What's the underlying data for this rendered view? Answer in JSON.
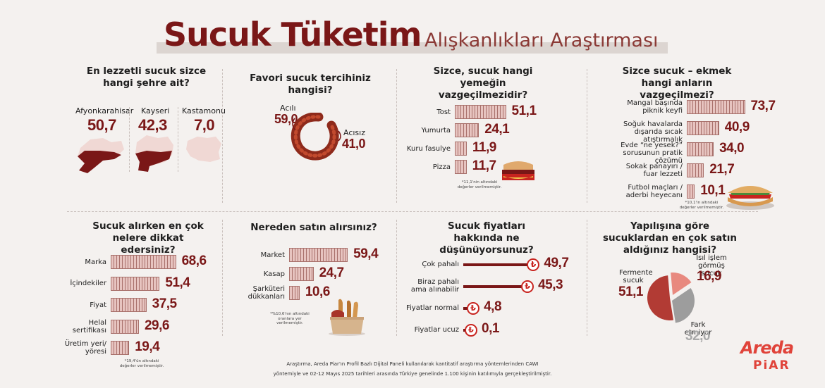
{
  "header": {
    "title_bold": "Sucuk Tüketim",
    "title_light": "Alışkanlıkları Araştırması"
  },
  "colors": {
    "accent": "#7a1717",
    "red": "#c8241f",
    "bar_fill": "#e7c4c0",
    "bar_line": "#a8706b",
    "bg": "#f4f1ef"
  },
  "icons": [
    "turkey-map-region-icon",
    "sucuk-ring-icon",
    "sandwich-icon",
    "sucuk-bread-icon",
    "bread-bag-icon",
    "lira-sign-icon",
    "sucuk-pie-icon"
  ],
  "chart_data": [
    {
      "type": "table",
      "title": "En lezzetli sucuk sizce hangi şehre ait?",
      "categories": [
        "Afyonkarahisar",
        "Kayseri",
        "Kastamonu"
      ],
      "values": [
        50.7,
        42.3,
        7.0
      ],
      "display": [
        "50,7",
        "42,3",
        "7,0"
      ]
    },
    {
      "type": "table",
      "title": "Favori sucuk tercihiniz hangisi?",
      "categories": [
        "Acılı",
        "Acısız"
      ],
      "values": [
        59.0,
        41.0
      ],
      "display": [
        "59,0",
        "41,0"
      ]
    },
    {
      "type": "bar",
      "title": "Sizce, sucuk hangi yemeğin vazgeçilmezidir?",
      "categories": [
        "Tost",
        "Yumurta",
        "Kuru fasulye",
        "Pizza"
      ],
      "values": [
        51.1,
        24.1,
        11.9,
        11.7
      ],
      "display": [
        "51,1",
        "24,1",
        "11,9",
        "11,7"
      ],
      "note": "*11,1'nin altındaki değerler verilmemiştir."
    },
    {
      "type": "bar",
      "title": "Sizce sucuk – ekmek hangi anların vazgeçilmezi?",
      "categories": [
        "Mangal başında piknik keyfi",
        "Soğuk havalarda dışarıda sıcak atıştırmalık",
        "Evde “ne yesek?” sorusunun pratik çözümü",
        "Sokak panayırı / fuar lezzeti",
        "Futbol maçları / aderbi heyecanı"
      ],
      "labels": [
        [
          "Mangal başında",
          "piknik keyfi"
        ],
        [
          "Soğuk havalarda",
          "dışarıda sıcak atıştırmalık"
        ],
        [
          "Evde “ne yesek?”",
          "sorusunun pratik çözümü"
        ],
        [
          "Sokak panayırı /",
          "fuar lezzeti"
        ],
        [
          "Futbol maçları /",
          "aderbi heyecanı"
        ]
      ],
      "values": [
        73.7,
        40.9,
        34.0,
        21.7,
        10.1
      ],
      "display": [
        "73,7",
        "40,9",
        "34,0",
        "21,7",
        "10,1"
      ],
      "note": "*10,1'in altındaki değerler verilmemiştir."
    },
    {
      "type": "bar",
      "title": "Sucuk alırken en çok nelere dikkat edersiniz?",
      "categories": [
        "Marka",
        "İçindekiler",
        "Fiyat",
        "Helal sertifikası",
        "Üretim yeri/ yöresi"
      ],
      "labels": [
        [
          "Marka"
        ],
        [
          "İçindekiler"
        ],
        [
          "Fiyat"
        ],
        [
          "Helal",
          "sertifikası"
        ],
        [
          "Üretim yeri/",
          "yöresi"
        ]
      ],
      "values": [
        68.6,
        51.4,
        37.5,
        29.6,
        19.4
      ],
      "display": [
        "68,6",
        "51,4",
        "37,5",
        "29,6",
        "19,4"
      ],
      "note": "*19,4'ün altındaki değerler verilmemiştir."
    },
    {
      "type": "bar",
      "title": "Nereden satın alırsınız?",
      "categories": [
        "Market",
        "Kasap",
        "Şarküteri dükkanları"
      ],
      "labels": [
        [
          "Market"
        ],
        [
          "Kasap"
        ],
        [
          "Şarküteri",
          "dükkanları"
        ]
      ],
      "values": [
        59.4,
        24.7,
        10.6
      ],
      "display": [
        "59,4",
        "24,7",
        "10,6"
      ],
      "note": "*%10,6'nın altındaki oranlara yer verilmemiştir."
    },
    {
      "type": "bar",
      "title": "Sucuk fiyatları hakkında ne düşünüyorsunuz?",
      "categories": [
        "Çok pahalı",
        "Biraz pahalı ama alınabilir",
        "Fiyatlar normal",
        "Fiyatlar ucuz"
      ],
      "labels": [
        [
          "Çok pahalı"
        ],
        [
          "Biraz pahalı",
          "ama alınabilir"
        ],
        [
          "Fiyatlar normal"
        ],
        [
          "Fiyatlar ucuz"
        ]
      ],
      "values": [
        49.7,
        45.3,
        4.8,
        0.1
      ],
      "display": [
        "49,7",
        "45,3",
        "4,8",
        "0,1"
      ],
      "icon": "₺"
    },
    {
      "type": "pie",
      "title": "Yapılışına göre sucuklardan en çok satın aldığınız hangisi?",
      "categories": [
        "Fermente sucuk",
        "Isıl işlem görmüş sucuk",
        "Fark etmiyor"
      ],
      "labels": [
        [
          "Fermente",
          "sucuk"
        ],
        [
          "Isıl işlem",
          "görmüş sucuk"
        ],
        [
          "Fark etmiyor"
        ]
      ],
      "values": [
        51.1,
        16.9,
        32.0
      ],
      "display": [
        "51,1",
        "16,9",
        "32,0"
      ]
    }
  ],
  "footer": {
    "line1": "Araştırma, Areda Piar'ın Profil Bazlı Dijital Paneli kullanılarak kantitatif araştırma yöntemlerinden CAWI",
    "line2": "yöntemiyle ve 02-12 Mayıs 2025 tarihleri arasında Türkiye genelinde 1.100 kişinin katılımıyla gerçekleştirilmiştir."
  },
  "logo": {
    "top": "Areda",
    "bottom": "PiAR"
  }
}
